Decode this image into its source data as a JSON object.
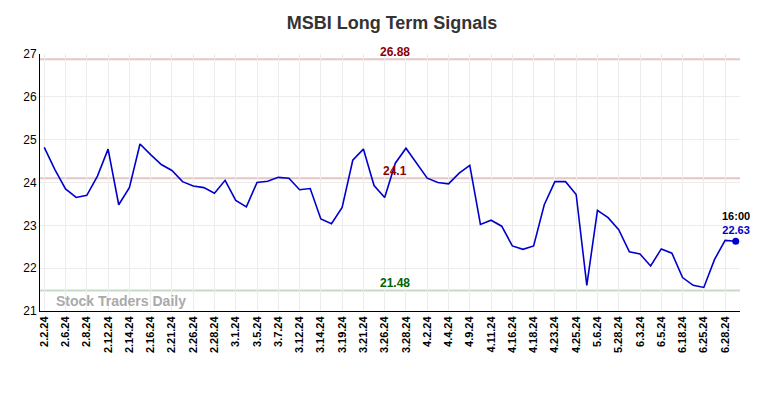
{
  "chart_data": {
    "type": "line",
    "title": "MSBI Long Term Signals",
    "categories": [
      "2.2.24",
      null,
      "2.6.24",
      null,
      "2.8.24",
      null,
      "2.12.24",
      null,
      "2.14.24",
      null,
      "2.16.24",
      null,
      "2.21.24",
      null,
      "2.26.24",
      null,
      "2.28.24",
      null,
      "3.1.24",
      null,
      "3.5.24",
      null,
      "3.7.24",
      null,
      "3.12.24",
      null,
      "3.14.24",
      null,
      "3.19.24",
      null,
      "3.21.24",
      null,
      "3.26.24",
      null,
      "3.28.24",
      null,
      "4.2.24",
      null,
      "4.4.24",
      null,
      "4.9.24",
      null,
      "4.11.24",
      null,
      "4.16.24",
      null,
      "4.18.24",
      null,
      "4.23.24",
      null,
      "4.25.24",
      null,
      "5.6.24",
      null,
      "5.28.24",
      null,
      "6.3.24",
      null,
      "6.5.24",
      null,
      "6.18.24",
      null,
      "6.25.24",
      null,
      "6.28.24",
      null
    ],
    "values": [
      24.82,
      24.3,
      23.85,
      23.65,
      23.7,
      24.15,
      24.78,
      23.48,
      23.88,
      24.9,
      24.65,
      24.42,
      24.28,
      24.02,
      23.92,
      23.88,
      23.75,
      24.05,
      23.58,
      23.43,
      24.0,
      24.03,
      24.12,
      24.1,
      23.83,
      23.86,
      23.15,
      23.04,
      23.42,
      24.52,
      24.78,
      23.93,
      23.65,
      24.45,
      24.8,
      24.45,
      24.1,
      24.0,
      23.97,
      24.22,
      24.4,
      23.02,
      23.12,
      22.98,
      22.52,
      22.44,
      22.52,
      23.48,
      24.02,
      24.02,
      23.72,
      21.6,
      23.35,
      23.18,
      22.9,
      22.38,
      22.33,
      22.05,
      22.45,
      22.35,
      21.78,
      21.6,
      21.55,
      22.2,
      22.65,
      22.63
    ],
    "color": "#0000cc",
    "ylim": [
      21,
      27
    ],
    "yticks": [
      21,
      22,
      23,
      24,
      25,
      26,
      27
    ],
    "grid": true,
    "levels": [
      {
        "value": 26.88,
        "color": "#8b0000"
      },
      {
        "value": 24.1,
        "color": "#8b0000"
      },
      {
        "value": 21.48,
        "color": "#006400"
      }
    ],
    "annotations": [
      "16:00"
    ],
    "watermark": "Stock Traders Daily"
  }
}
